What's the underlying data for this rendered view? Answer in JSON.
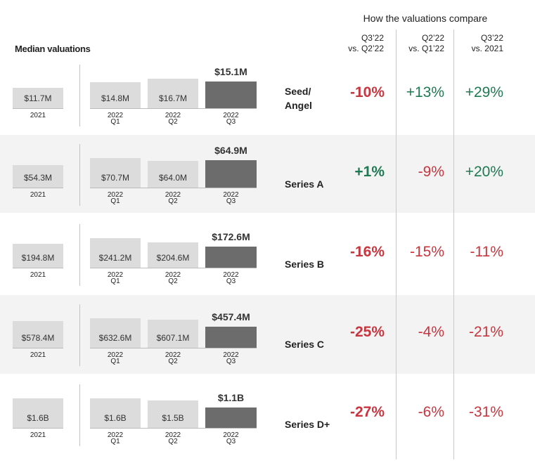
{
  "header": {
    "compare_title": "How the valuations compare",
    "columns": [
      {
        "line1": "Q3’22",
        "line2": "vs. Q2’22"
      },
      {
        "line1": "Q2’22",
        "line2": "vs. Q1’22"
      },
      {
        "line1": "Q3’22",
        "line2": "vs. 2021"
      }
    ],
    "median_title": "Median valuations"
  },
  "colors": {
    "positive": "#1e7a52",
    "negative": "#c7353f",
    "bar_light": "#dcdcdc",
    "bar_dark": "#6c6c6c",
    "row_shade": "#f3f3f3"
  },
  "chart_data": {
    "type": "bar",
    "categories": [
      {
        "line1": "2021",
        "line2": ""
      },
      {
        "line1": "2022",
        "line2": "Q1"
      },
      {
        "line1": "2022",
        "line2": "Q2"
      },
      {
        "line1": "2022",
        "line2": "Q3"
      }
    ],
    "rows": [
      {
        "stage": [
          "Seed/",
          "Angel"
        ],
        "values": [
          11.7,
          14.8,
          16.7,
          15.1
        ],
        "labels": [
          "$11.7M",
          "$14.8M",
          "$16.7M",
          "$15.1M"
        ],
        "changes": [
          {
            "text": "-10%",
            "sign": "negative",
            "bold": true
          },
          {
            "text": "+13%",
            "sign": "positive",
            "bold": false
          },
          {
            "text": "+29%",
            "sign": "positive",
            "bold": false
          }
        ]
      },
      {
        "stage": [
          "Series A"
        ],
        "values": [
          54.3,
          70.7,
          64.0,
          64.9
        ],
        "labels": [
          "$54.3M",
          "$70.7M",
          "$64.0M",
          "$64.9M"
        ],
        "changes": [
          {
            "text": "+1%",
            "sign": "positive",
            "bold": true
          },
          {
            "text": "-9%",
            "sign": "negative",
            "bold": false
          },
          {
            "text": "+20%",
            "sign": "positive",
            "bold": false
          }
        ]
      },
      {
        "stage": [
          "Series B"
        ],
        "values": [
          194.8,
          241.2,
          204.6,
          172.6
        ],
        "labels": [
          "$194.8M",
          "$241.2M",
          "$204.6M",
          "$172.6M"
        ],
        "changes": [
          {
            "text": "-16%",
            "sign": "negative",
            "bold": true
          },
          {
            "text": "-15%",
            "sign": "negative",
            "bold": false
          },
          {
            "text": "-11%",
            "sign": "negative",
            "bold": false
          }
        ]
      },
      {
        "stage": [
          "Series C"
        ],
        "values": [
          578.4,
          632.6,
          607.1,
          457.4
        ],
        "labels": [
          "$578.4M",
          "$632.6M",
          "$607.1M",
          "$457.4M"
        ],
        "changes": [
          {
            "text": "-25%",
            "sign": "negative",
            "bold": true
          },
          {
            "text": "-4%",
            "sign": "negative",
            "bold": false
          },
          {
            "text": "-21%",
            "sign": "negative",
            "bold": false
          }
        ]
      },
      {
        "stage": [
          "Series D+"
        ],
        "values": [
          1.6,
          1.6,
          1.5,
          1.1
        ],
        "labels": [
          "$1.6B",
          "$1.6B",
          "$1.5B",
          "$1.1B"
        ],
        "changes": [
          {
            "text": "-27%",
            "sign": "negative",
            "bold": true
          },
          {
            "text": "-6%",
            "sign": "negative",
            "bold": false
          },
          {
            "text": "-31%",
            "sign": "negative",
            "bold": false
          }
        ]
      }
    ]
  }
}
